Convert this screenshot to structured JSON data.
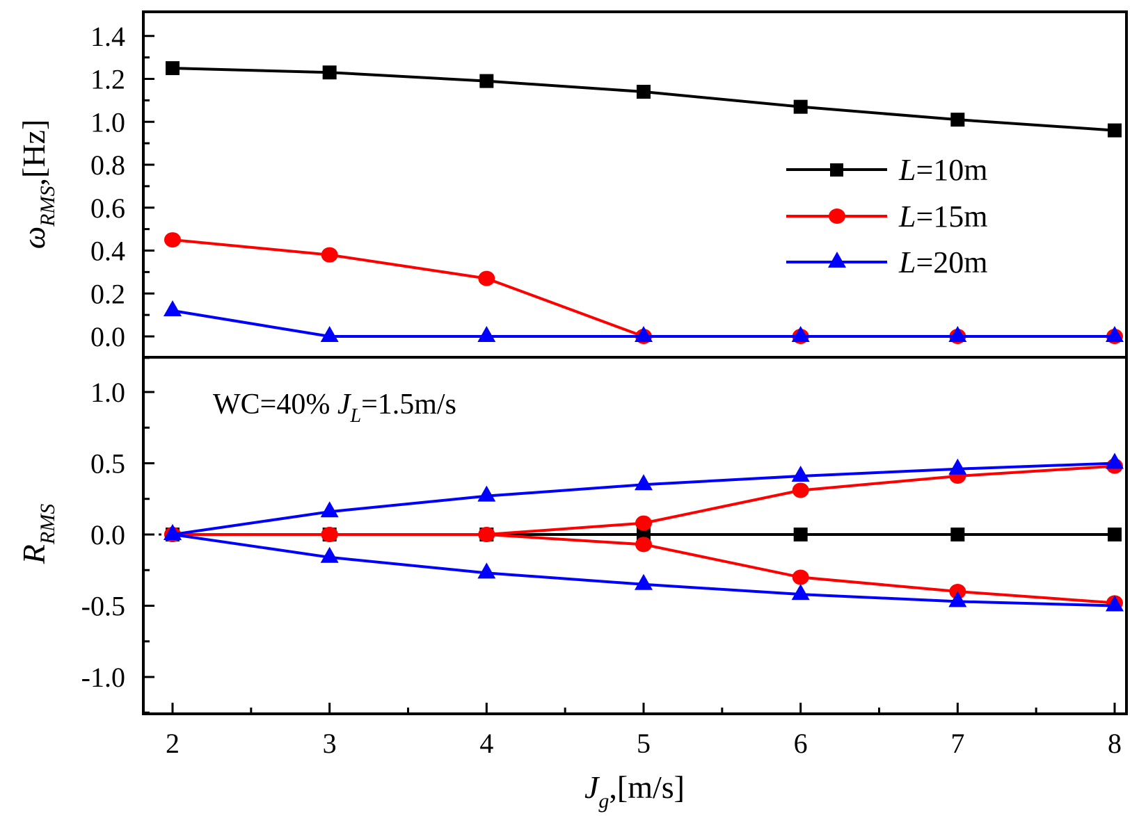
{
  "chart_data": [
    {
      "type": "line",
      "panel": "top",
      "title": "",
      "xlabel": "",
      "ylabel_main": "ω",
      "ylabel_sub": "RMS",
      "ylabel_unit": ",[Hz]",
      "x": [
        2,
        3,
        4,
        5,
        6,
        7,
        8
      ],
      "xlim": [
        1.8,
        8.1
      ],
      "ylim": [
        -0.1,
        1.5
      ],
      "yticks": [
        "0.0",
        "0.2",
        "0.4",
        "0.6",
        "0.8",
        "1.0",
        "1.2",
        "1.4"
      ],
      "legend_position": "right",
      "series": [
        {
          "name_italic": "L",
          "name_rest": "=10m",
          "color": "#000000",
          "marker": "square",
          "values": [
            1.25,
            1.23,
            1.19,
            1.14,
            1.07,
            1.01,
            0.96
          ]
        },
        {
          "name_italic": "L",
          "name_rest": "=15m",
          "color": "#ff0000",
          "marker": "circle",
          "values": [
            0.45,
            0.38,
            0.27,
            0.0,
            0.0,
            0.0,
            0.0
          ]
        },
        {
          "name_italic": "L",
          "name_rest": "=20m",
          "color": "#0000ff",
          "marker": "triangle",
          "values": [
            0.12,
            0.0,
            0.0,
            0.0,
            0.0,
            0.0,
            0.0
          ]
        }
      ]
    },
    {
      "type": "line",
      "panel": "bottom",
      "xlabel_main": "J",
      "xlabel_sub": "g",
      "xlabel_unit": ",[m/s]",
      "ylabel_main": "R",
      "ylabel_sub": "RMS",
      "x": [
        2,
        3,
        4,
        5,
        6,
        7,
        8
      ],
      "xticks": [
        "2",
        "3",
        "4",
        "5",
        "6",
        "7",
        "8"
      ],
      "ylim": [
        -1.25,
        1.25
      ],
      "yticks": [
        "-1.0",
        "-0.5",
        "0.0",
        "0.5",
        "1.0"
      ],
      "annotation": {
        "prefix": "WC=40% ",
        "italic": "J",
        "sub": "L",
        "suffix": "=1.5m/s"
      },
      "series": [
        {
          "name": "L=10m",
          "color": "#000000",
          "marker": "square",
          "values": [
            0.0,
            0.0,
            0.0,
            0.0,
            0.0,
            0.0,
            0.0
          ]
        },
        {
          "name": "L=15m (upper)",
          "color": "#ff0000",
          "marker": "circle",
          "values": [
            0.0,
            0.0,
            0.0,
            0.08,
            0.31,
            0.41,
            0.48
          ]
        },
        {
          "name": "L=15m (lower)",
          "color": "#ff0000",
          "marker": "circle",
          "values": [
            0.0,
            0.0,
            0.0,
            -0.07,
            -0.3,
            -0.4,
            -0.48
          ]
        },
        {
          "name": "L=20m (upper)",
          "color": "#0000ff",
          "marker": "triangle",
          "values": [
            0.0,
            0.16,
            0.27,
            0.35,
            0.41,
            0.46,
            0.5
          ]
        },
        {
          "name": "L=20m (lower)",
          "color": "#0000ff",
          "marker": "triangle",
          "values": [
            0.0,
            -0.16,
            -0.27,
            -0.35,
            -0.42,
            -0.47,
            -0.5
          ]
        }
      ]
    }
  ]
}
